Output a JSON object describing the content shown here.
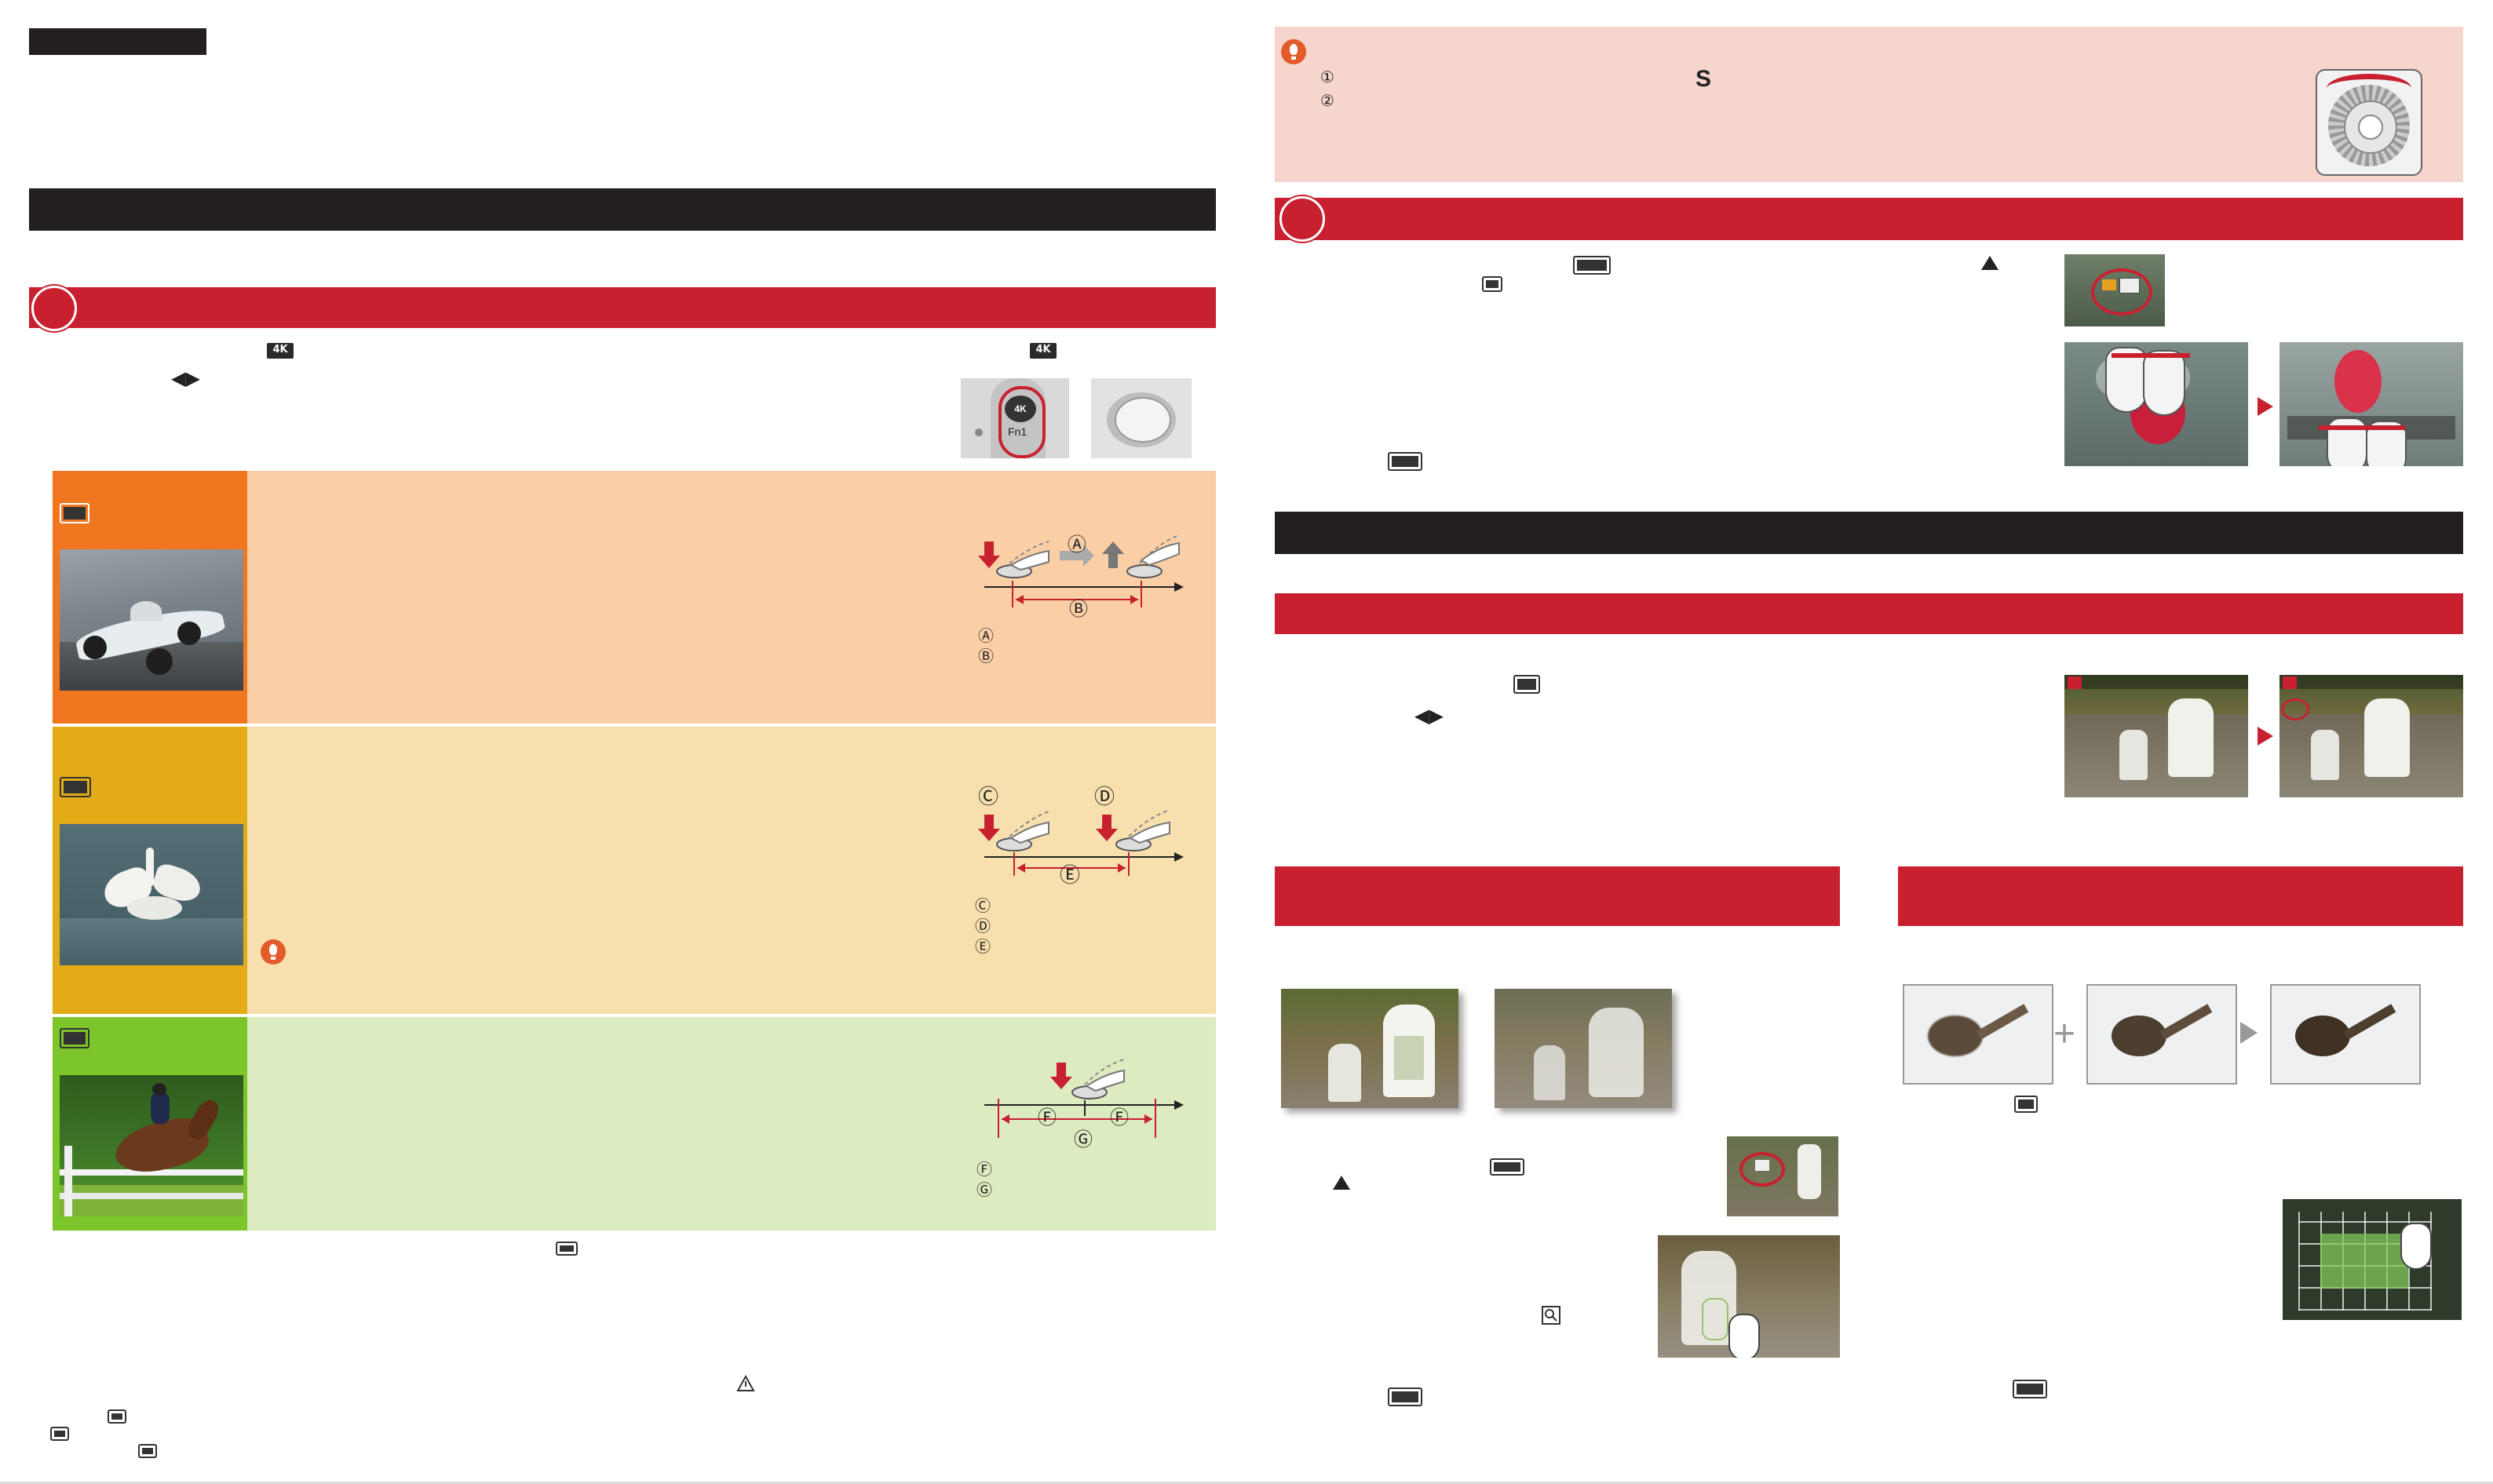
{
  "page": {
    "left": {
      "circled_letters_row1": [
        "Ⓐ",
        "Ⓑ"
      ],
      "circled_letters_row2": [
        "Ⓒ",
        "Ⓓ",
        "Ⓔ"
      ],
      "circled_letters_row3": [
        "Ⓕ",
        "Ⓖ"
      ],
      "fn_label": "Fn1",
      "arrows": "◀▶"
    },
    "right": {
      "tip_numbers": [
        "①",
        "②"
      ],
      "tip_letter": "S",
      "arrows": "◀▶"
    }
  },
  "colors": {
    "red": "#c8202f",
    "black": "#231f20",
    "orange": "#f07620",
    "orange_light": "#fbcfa6",
    "yellow": "#e3ac16",
    "yellow_light": "#f7e0ae",
    "green": "#7cc52b",
    "green_light": "#dcecc0",
    "pink": "#f5d5cc"
  },
  "icons": [
    "4k-photo-icon",
    "burst-icon",
    "dial-icon",
    "touch-hand-icon",
    "zoom-icon",
    "warning-triangle-icon",
    "tip-icon"
  ]
}
